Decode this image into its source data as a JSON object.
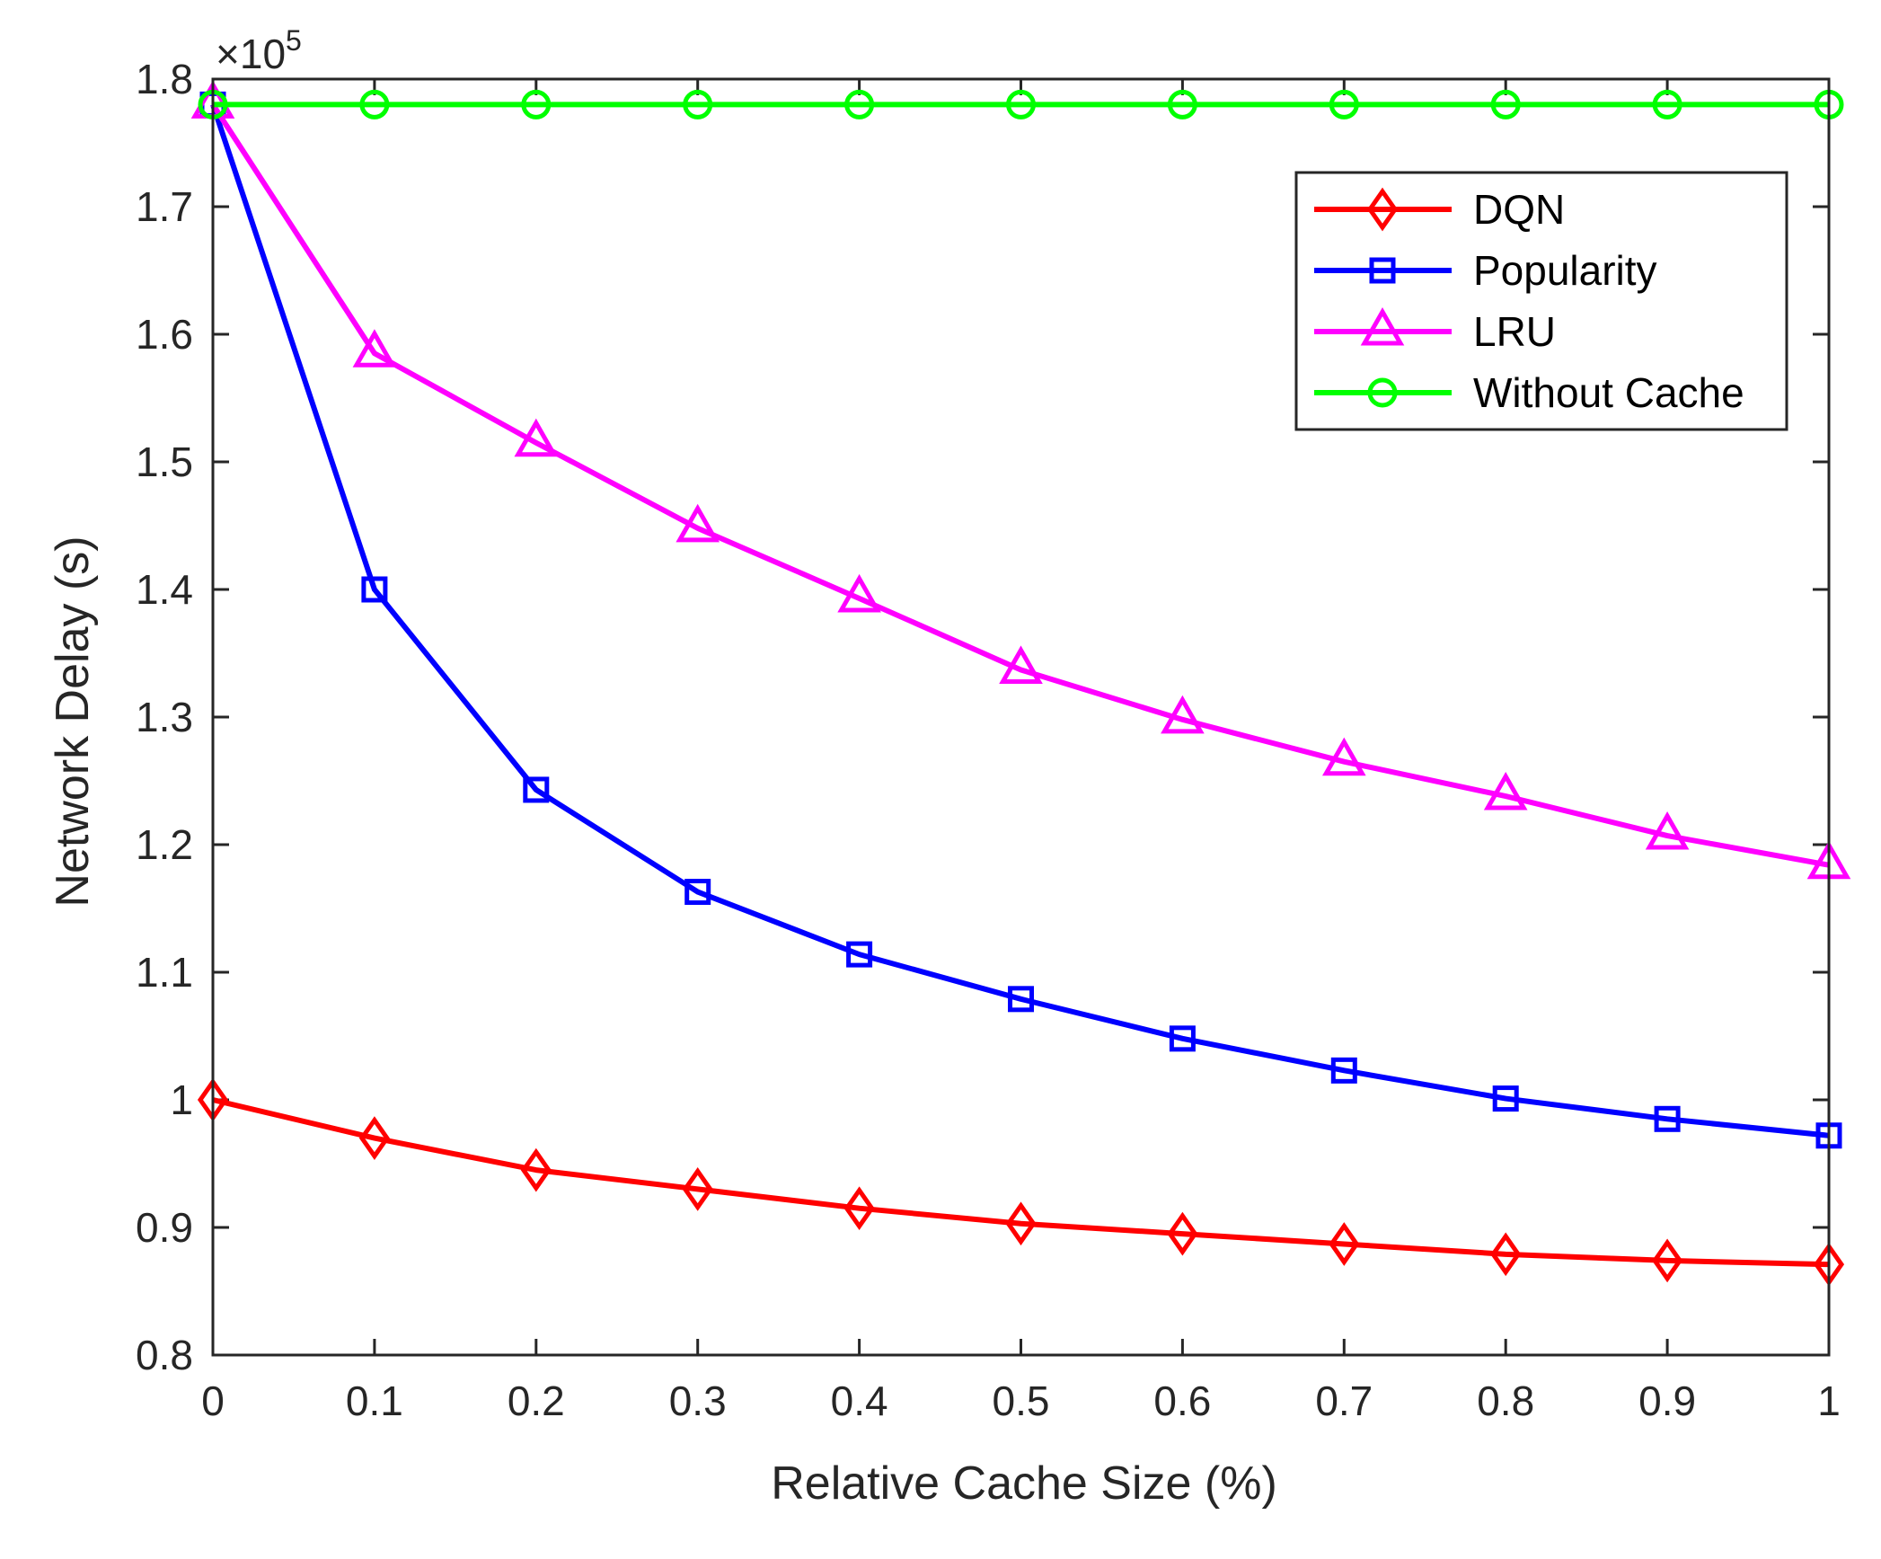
{
  "chart_data": {
    "type": "line",
    "title": "",
    "xlabel": "Relative Cache Size (%)",
    "ylabel": "Network Delay (s)",
    "exponent_label": {
      "base": "×10",
      "power": "5"
    },
    "xlim": [
      0,
      1
    ],
    "ylim": [
      0.8,
      1.8
    ],
    "x": [
      0,
      0.1,
      0.2,
      0.3,
      0.4,
      0.5,
      0.6,
      0.7,
      0.8,
      0.9,
      1
    ],
    "xticks": [
      "0",
      "0.1",
      "0.2",
      "0.3",
      "0.4",
      "0.5",
      "0.6",
      "0.7",
      "0.8",
      "0.9",
      "1"
    ],
    "yticks": [
      "0.8",
      "0.9",
      "1",
      "1.1",
      "1.2",
      "1.3",
      "1.4",
      "1.5",
      "1.6",
      "1.7",
      "1.8"
    ],
    "grid": false,
    "legend_position": "top-right",
    "series": [
      {
        "name": "DQN",
        "color": "#ff0000",
        "marker": "diamond",
        "values": [
          1.0,
          0.97,
          0.945,
          0.93,
          0.915,
          0.903,
          0.895,
          0.887,
          0.879,
          0.874,
          0.871
        ]
      },
      {
        "name": "Popularity",
        "color": "#0000ff",
        "marker": "square",
        "values": [
          1.78,
          1.4,
          1.243,
          1.163,
          1.114,
          1.079,
          1.048,
          1.023,
          1.001,
          0.985,
          0.972
        ]
      },
      {
        "name": "LRU",
        "color": "#ff00ff",
        "marker": "triangle",
        "values": [
          1.78,
          1.585,
          1.515,
          1.448,
          1.393,
          1.337,
          1.298,
          1.265,
          1.238,
          1.207,
          1.184
        ]
      },
      {
        "name": "Without Cache",
        "color": "#00ff00",
        "marker": "circle",
        "values": [
          1.78,
          1.78,
          1.78,
          1.78,
          1.78,
          1.78,
          1.78,
          1.78,
          1.78,
          1.78,
          1.78
        ]
      }
    ]
  }
}
